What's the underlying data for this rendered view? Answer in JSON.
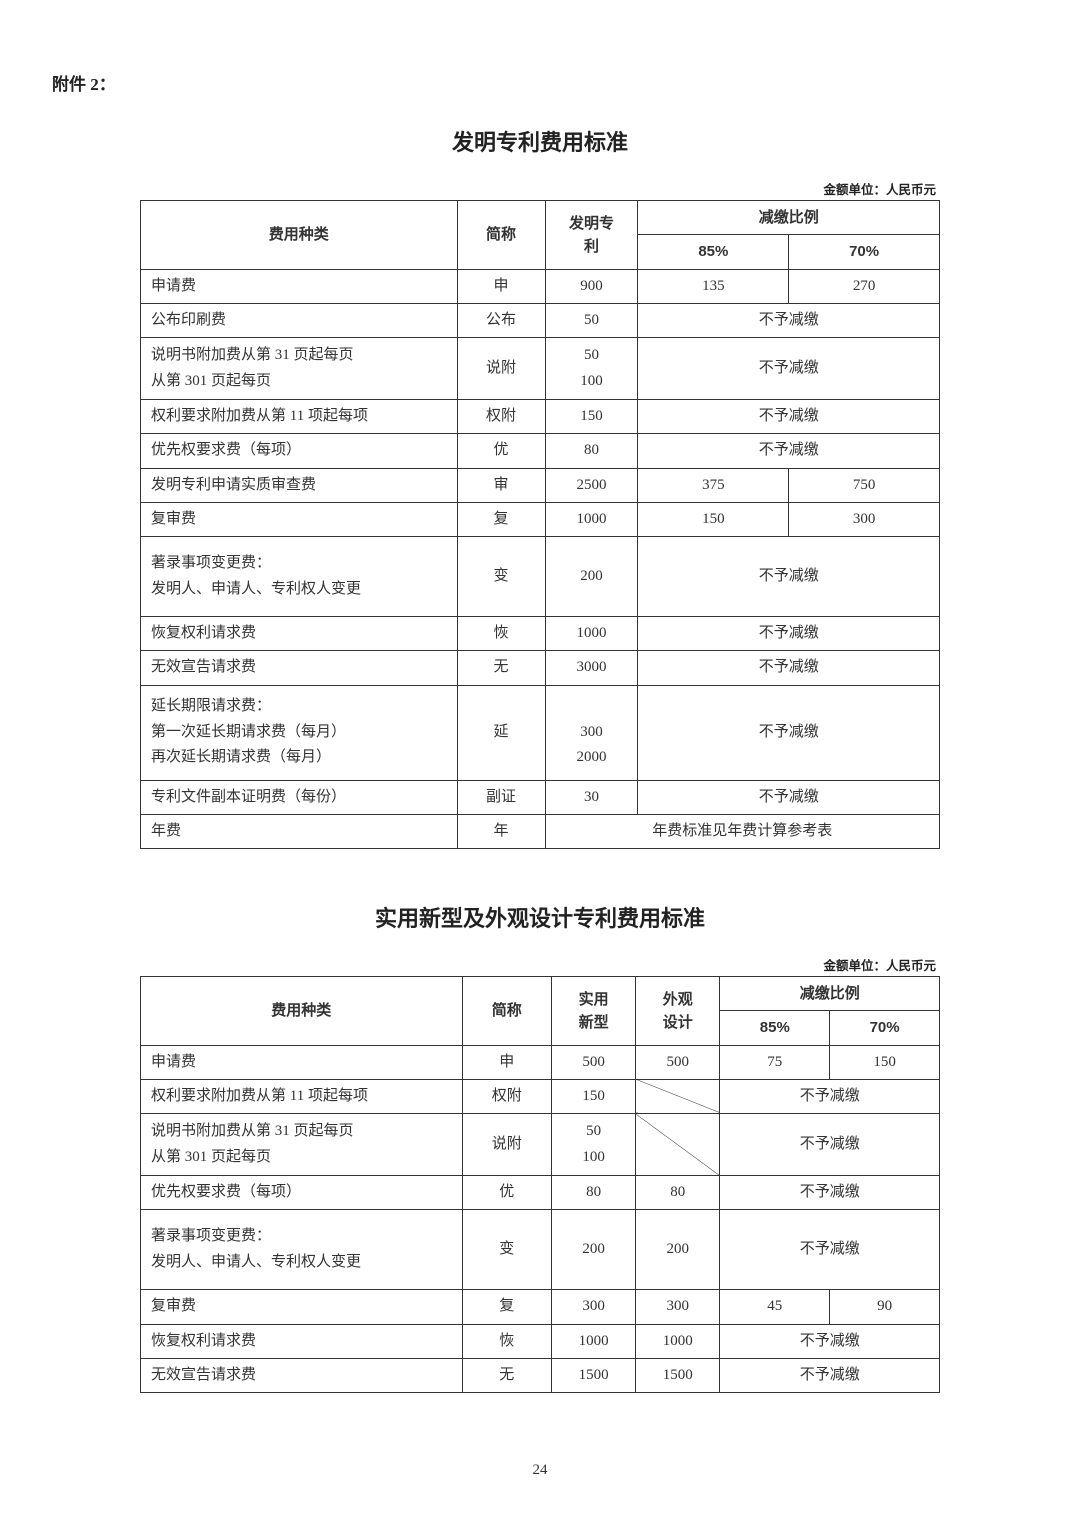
{
  "appendix": "附件 2：",
  "unit_label": "金额单位：人民币元",
  "page_num": "24",
  "table1": {
    "title": "发明专利费用标准",
    "head": {
      "category": "费用种类",
      "abbr": "简称",
      "invention": "发明专\n利",
      "reduction": "减缴比例",
      "p85": "85%",
      "p70": "70%"
    },
    "no_reduce": "不予减缴",
    "rows": {
      "r1": {
        "cat": "申请费",
        "abbr": "申",
        "val": "900",
        "p85": "135",
        "p70": "270"
      },
      "r2": {
        "cat": "公布印刷费",
        "abbr": "公布",
        "val": "50"
      },
      "r3": {
        "cat": "说明书附加费从第 31 页起每页\n从第 301 页起每页",
        "abbr": "说附",
        "val": "50\n100"
      },
      "r4": {
        "cat": "权利要求附加费从第 11 项起每项",
        "abbr": "权附",
        "val": "150"
      },
      "r5": {
        "cat": "优先权要求费（每项）",
        "abbr": "优",
        "val": "80"
      },
      "r6": {
        "cat": "发明专利申请实质审查费",
        "abbr": "审",
        "val": "2500",
        "p85": "375",
        "p70": "750"
      },
      "r7": {
        "cat": "复审费",
        "abbr": "复",
        "val": "1000",
        "p85": "150",
        "p70": "300"
      },
      "r8": {
        "cat": "著录事项变更费：\n发明人、申请人、专利权人变更",
        "abbr": "变",
        "val": "200"
      },
      "r9": {
        "cat": "恢复权利请求费",
        "abbr": "恢",
        "val": "1000"
      },
      "r10": {
        "cat": "无效宣告请求费",
        "abbr": "无",
        "val": "3000"
      },
      "r11": {
        "cat": "延长期限请求费：\n第一次延长期请求费（每月）\n再次延长期请求费（每月）",
        "abbr": "延",
        "val": "\n300\n2000"
      },
      "r12": {
        "cat": "专利文件副本证明费（每份）",
        "abbr": "副证",
        "val": "30"
      },
      "r13": {
        "cat": "年费",
        "abbr": "年",
        "annual": "年费标准见年费计算参考表"
      }
    }
  },
  "table2": {
    "title": "实用新型及外观设计专利费用标准",
    "head": {
      "category": "费用种类",
      "abbr": "简称",
      "utility": "实用\n新型",
      "design": "外观\n设计",
      "reduction": "减缴比例",
      "p85": "85%",
      "p70": "70%"
    },
    "no_reduce": "不予减缴",
    "rows": {
      "r1": {
        "cat": "申请费",
        "abbr": "申",
        "util": "500",
        "des": "500",
        "p85": "75",
        "p70": "150"
      },
      "r2": {
        "cat": "权利要求附加费从第 11 项起每项",
        "abbr": "权附",
        "util": "150"
      },
      "r3": {
        "cat": "说明书附加费从第 31 页起每页\n从第 301 页起每页",
        "abbr": "说附",
        "util": "50\n100"
      },
      "r4": {
        "cat": "优先权要求费（每项）",
        "abbr": "优",
        "util": "80",
        "des": "80"
      },
      "r5": {
        "cat": "著录事项变更费：\n发明人、申请人、专利权人变更",
        "abbr": "变",
        "util": "200",
        "des": "200"
      },
      "r6": {
        "cat": "复审费",
        "abbr": "复",
        "util": "300",
        "des": "300",
        "p85": "45",
        "p70": "90"
      },
      "r7": {
        "cat": "恢复权利请求费",
        "abbr": "恢",
        "util": "1000",
        "des": "1000"
      },
      "r8": {
        "cat": "无效宣告请求费",
        "abbr": "无",
        "util": "1500",
        "des": "1500"
      }
    }
  }
}
